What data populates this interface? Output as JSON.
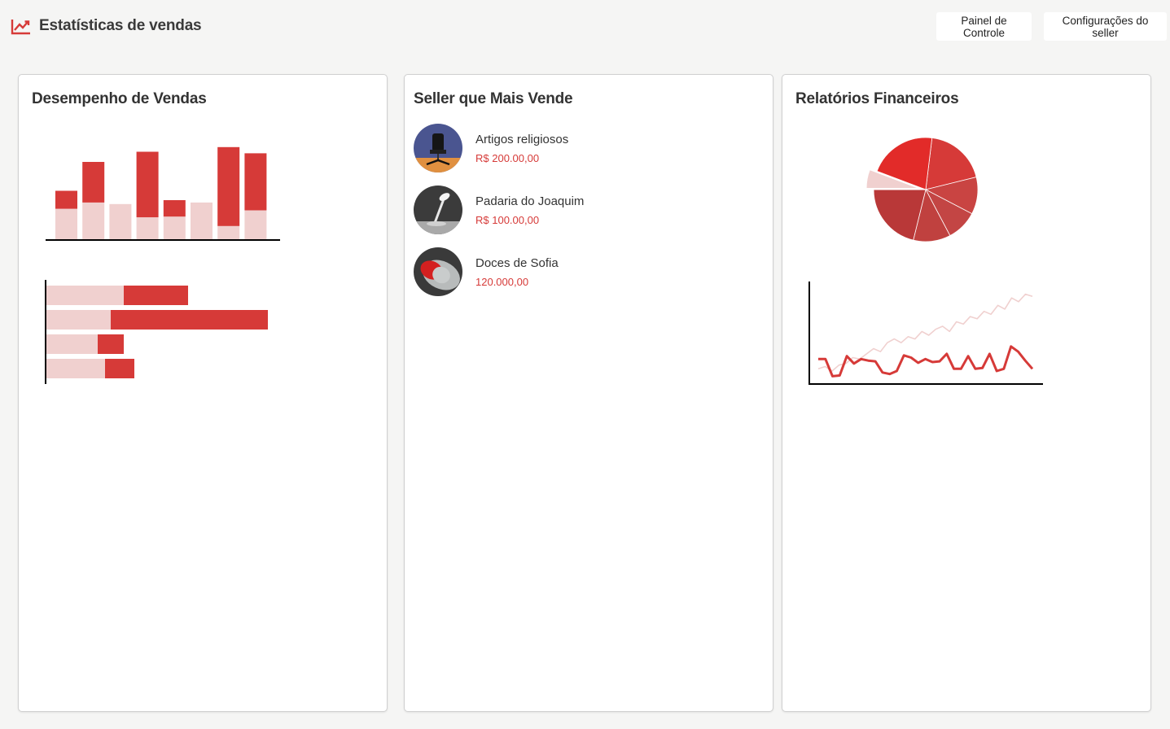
{
  "header": {
    "title": "Estatísticas de vendas",
    "logo_icon": "trending-up-icon",
    "buttons": [
      {
        "label": "Painel de Controle"
      },
      {
        "label": "Configurações do seller"
      }
    ]
  },
  "colors": {
    "accent": "#d63a38",
    "accent_light": "#f0d0cf",
    "background": "#f5f5f4"
  },
  "cards": {
    "sales": {
      "title": "Desempenho de Vendas"
    },
    "top_seller": {
      "title": "Seller que Mais Vende"
    },
    "finance": {
      "title": "Relatórios Financeiros"
    }
  },
  "sellers": [
    {
      "name": "Artigos religiosos",
      "value": "R$ 200.00,00",
      "avatar_icon": "office-chair-image"
    },
    {
      "name": "Padaria do Joaquim",
      "value": "R$ 100.00,00",
      "avatar_icon": "desk-lamp-image"
    },
    {
      "name": "Doces de Sofia",
      "value": "120.000,00",
      "avatar_icon": "computer-mouse-image"
    }
  ],
  "chart_data": [
    {
      "type": "bar",
      "stacked": true,
      "orientation": "vertical",
      "series": [
        {
          "values": [
            40,
            48,
            46,
            29,
            30,
            48,
            18,
            38
          ],
          "color": "#f0d0cf"
        },
        {
          "values": [
            23,
            52,
            0,
            84,
            21,
            0,
            101,
            73
          ],
          "color": "#d63a38"
        }
      ]
    },
    {
      "type": "bar",
      "stacked": true,
      "orientation": "horizontal",
      "series": [
        {
          "values": [
            95,
            79,
            63,
            72
          ],
          "color": "#f0d0cf"
        },
        {
          "values": [
            79,
            193,
            32,
            36
          ],
          "color": "#d63a38"
        }
      ]
    },
    {
      "type": "pie",
      "values": [
        20,
        12,
        10,
        12,
        22,
        6,
        22
      ],
      "colors": [
        "#d63a38",
        "#c94442",
        "#c34544",
        "#c0413f",
        "#b93838",
        "#f0d0cf",
        "#e22b29"
      ],
      "exploded": [
        5
      ]
    },
    {
      "type": "line",
      "series": [
        {
          "values": [
            15,
            18,
            12,
            20,
            22,
            30,
            28,
            35,
            42,
            38,
            50,
            55,
            50,
            58,
            55,
            65,
            60,
            68,
            72,
            65,
            78,
            75,
            85,
            82,
            92,
            88,
            100,
            95,
            110,
            105,
            115,
            112
          ],
          "color": "#f0d0cf"
        },
        {
          "values": [
            28,
            28,
            5,
            6,
            32,
            22,
            28,
            26,
            25,
            10,
            8,
            12,
            33,
            30,
            23,
            28,
            24,
            25,
            35,
            15,
            15,
            32,
            15,
            16,
            35,
            12,
            15,
            45,
            38,
            26,
            15
          ],
          "color": "#d63a38"
        }
      ]
    }
  ]
}
